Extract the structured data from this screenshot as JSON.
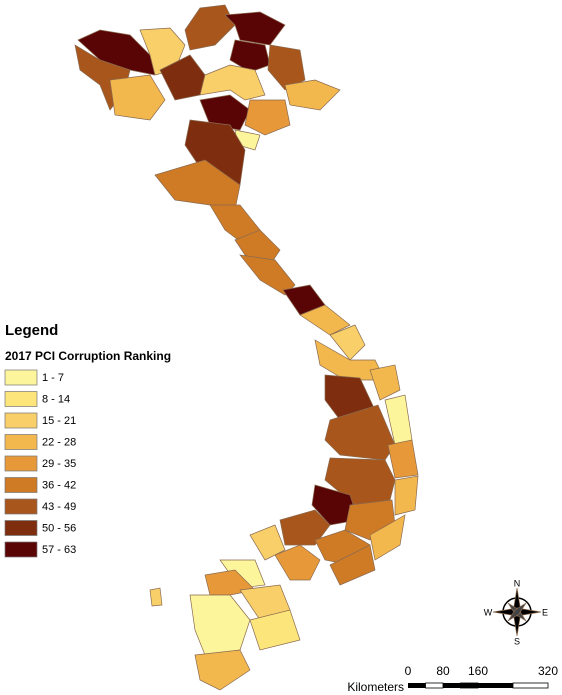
{
  "legend": {
    "title": "Legend",
    "subtitle": "2017 PCI Corruption Ranking",
    "classes": [
      {
        "label": "1 - 7",
        "color": "#fdf59c"
      },
      {
        "label": "8 - 14",
        "color": "#fce57a"
      },
      {
        "label": "15 - 21",
        "color": "#f8cf68"
      },
      {
        "label": "22 - 28",
        "color": "#f3b84d"
      },
      {
        "label": "29 - 35",
        "color": "#e7993a"
      },
      {
        "label": "36 - 42",
        "color": "#cf7b26"
      },
      {
        "label": "43 - 49",
        "color": "#a8561b"
      },
      {
        "label": "50 - 56",
        "color": "#7e2e0f"
      },
      {
        "label": "57 - 63",
        "color": "#5a0505"
      }
    ]
  },
  "compass": {
    "n": "N",
    "s": "S",
    "e": "E",
    "w": "W"
  },
  "scale_bar": {
    "unit": "Kilometers",
    "ticks": [
      0,
      80,
      160,
      320
    ]
  }
}
